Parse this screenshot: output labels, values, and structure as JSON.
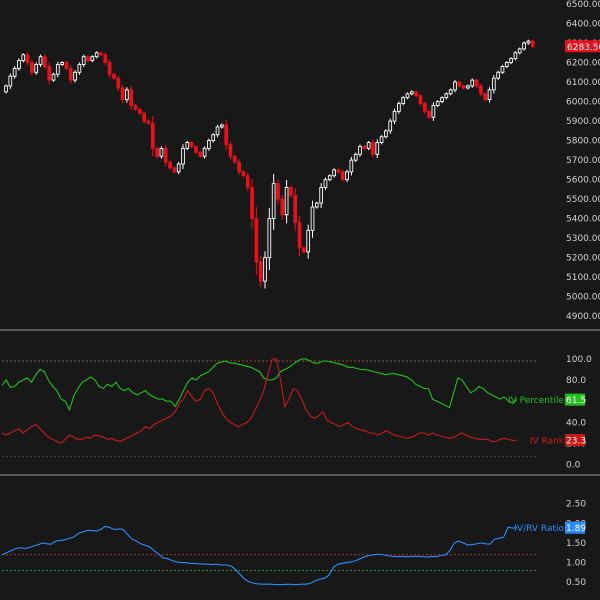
{
  "chart_data": [
    {
      "type": "candlestick",
      "title": "",
      "ylim": [
        4850,
        6500
      ],
      "y_ticks": [
        "6500.00",
        "6400.00",
        "6300.00",
        "6200.00",
        "6100.00",
        "6000.00",
        "5900.00",
        "5800.00",
        "5700.00",
        "5600.00",
        "5500.00",
        "5400.00",
        "5300.00",
        "5200.00",
        "5100.00",
        "5000.00",
        "4900.00"
      ],
      "last_price": "6283.50",
      "up_color": "#ffffff",
      "down_color": "#e8101a",
      "closes": [
        6080,
        6130,
        6170,
        6210,
        6240,
        6200,
        6150,
        6190,
        6230,
        6180,
        6110,
        6140,
        6190,
        6200,
        6170,
        6110,
        6150,
        6190,
        6230,
        6210,
        6230,
        6250,
        6240,
        6200,
        6140,
        6120,
        6070,
        6010,
        6060,
        5980,
        5960,
        5940,
        5900,
        5890,
        5760,
        5720,
        5760,
        5690,
        5660,
        5640,
        5680,
        5760,
        5790,
        5770,
        5740,
        5720,
        5760,
        5800,
        5830,
        5870,
        5880,
        5780,
        5720,
        5690,
        5640,
        5620,
        5560,
        5400,
        5180,
        5080,
        5200,
        5400,
        5580,
        5500,
        5420,
        5560,
        5520,
        5380,
        5250,
        5230,
        5340,
        5460,
        5480,
        5560,
        5600,
        5620,
        5650,
        5640,
        5600,
        5640,
        5700,
        5730,
        5770,
        5760,
        5790,
        5730,
        5790,
        5820,
        5850,
        5900,
        5950,
        5990,
        6020,
        6040,
        6050,
        6030,
        5990,
        5950,
        5920,
        5980,
        6000,
        6020,
        6040,
        6060,
        6100,
        6080,
        6070,
        6080,
        6110,
        6080,
        6040,
        6010,
        6060,
        6120,
        6150,
        6180,
        6200,
        6220,
        6250,
        6270,
        6300,
        6310,
        6283
      ]
    },
    {
      "type": "line",
      "title": "",
      "ylim": [
        -5,
        115
      ],
      "y_ticks": [
        "100.0",
        "80.0",
        "60.0",
        "40.0",
        "20.0",
        "0.0"
      ],
      "reference_lines": [
        {
          "value": 98,
          "color": "#c06020"
        },
        {
          "value": 8,
          "color": "#3060a0"
        }
      ],
      "series": [
        {
          "name": "IV Percentile",
          "color": "#22c01e",
          "last_value": "61.5",
          "values": [
            75,
            80,
            73,
            74,
            78,
            80,
            82,
            78,
            85,
            90,
            88,
            80,
            74,
            70,
            62,
            60,
            52,
            65,
            72,
            78,
            80,
            83,
            80,
            74,
            72,
            76,
            74,
            78,
            72,
            70,
            72,
            68,
            66,
            68,
            70,
            66,
            64,
            62,
            62,
            60,
            60,
            55,
            62,
            70,
            78,
            82,
            80,
            84,
            86,
            88,
            92,
            96,
            97,
            98,
            96,
            96,
            95,
            94,
            93,
            92,
            90,
            88,
            82,
            80,
            80,
            82,
            88,
            90,
            92,
            95,
            98,
            100,
            100,
            98,
            96,
            96,
            98,
            98,
            97,
            96,
            95,
            94,
            92,
            92,
            91,
            90,
            90,
            89,
            88,
            87,
            86,
            85,
            86,
            86,
            85,
            84,
            83,
            80,
            76,
            74,
            72,
            72,
            62,
            60,
            58,
            56,
            54,
            68,
            82,
            80,
            74,
            68,
            70,
            74,
            72,
            68,
            66,
            64,
            62,
            64,
            60,
            58,
            61.5
          ]
        },
        {
          "name": "IV Rank",
          "color": "#c81a1a",
          "last_value": "23.3",
          "values": [
            30,
            28,
            30,
            32,
            34,
            30,
            33,
            36,
            38,
            34,
            30,
            26,
            24,
            22,
            20,
            24,
            28,
            26,
            24,
            24,
            26,
            25,
            28,
            27,
            26,
            24,
            25,
            23,
            22,
            24,
            26,
            28,
            30,
            32,
            36,
            34,
            38,
            40,
            42,
            44,
            46,
            50,
            58,
            62,
            70,
            64,
            60,
            62,
            70,
            72,
            68,
            58,
            50,
            44,
            40,
            38,
            36,
            38,
            40,
            44,
            52,
            60,
            70,
            85,
            100,
            100,
            80,
            55,
            62,
            72,
            70,
            62,
            52,
            46,
            44,
            46,
            50,
            42,
            40,
            38,
            36,
            38,
            40,
            36,
            34,
            33,
            32,
            30,
            30,
            28,
            30,
            32,
            30,
            28,
            27,
            26,
            25,
            26,
            28,
            30,
            30,
            28,
            30,
            28,
            27,
            26,
            25,
            26,
            28,
            30,
            28,
            26,
            25,
            24,
            24,
            24,
            22,
            22,
            24,
            25,
            24,
            23,
            23.3
          ]
        }
      ]
    },
    {
      "type": "line",
      "title": "",
      "ylim": [
        0.2,
        2.85
      ],
      "y_ticks": [
        "2.50",
        "2.00",
        "1.50",
        "1.00",
        "0.50"
      ],
      "reference_lines": [
        {
          "value": 1.2,
          "color": "#c04040"
        },
        {
          "value": 0.8,
          "color": "#30a040"
        }
      ],
      "series": [
        {
          "name": "IV/RV Ratio",
          "color": "#2a8cff",
          "last_value": "1.89",
          "values": [
            1.2,
            1.25,
            1.3,
            1.35,
            1.38,
            1.36,
            1.38,
            1.42,
            1.45,
            1.5,
            1.48,
            1.47,
            1.55,
            1.56,
            1.58,
            1.62,
            1.65,
            1.74,
            1.78,
            1.82,
            1.82,
            1.8,
            1.84,
            1.92,
            1.9,
            1.84,
            1.86,
            1.85,
            1.72,
            1.6,
            1.55,
            1.48,
            1.44,
            1.4,
            1.3,
            1.22,
            1.12,
            1.1,
            1.05,
            1.02,
            1.0,
            1.0,
            0.98,
            0.98,
            0.97,
            0.96,
            0.96,
            0.95,
            0.96,
            0.94,
            0.94,
            0.92,
            0.84,
            0.72,
            0.6,
            0.52,
            0.48,
            0.46,
            0.45,
            0.45,
            0.45,
            0.44,
            0.44,
            0.44,
            0.45,
            0.44,
            0.44,
            0.45,
            0.45,
            0.48,
            0.54,
            0.58,
            0.6,
            0.68,
            0.88,
            0.96,
            0.98,
            1.0,
            1.02,
            1.05,
            1.1,
            1.15,
            1.18,
            1.2,
            1.22,
            1.2,
            1.18,
            1.16,
            1.15,
            1.16,
            1.15,
            1.15,
            1.16,
            1.16,
            1.15,
            1.14,
            1.16,
            1.15,
            1.18,
            1.2,
            1.3,
            1.5,
            1.55,
            1.5,
            1.45,
            1.46,
            1.48,
            1.5,
            1.48,
            1.47,
            1.6,
            1.62,
            1.65,
            1.9,
            1.88,
            1.89
          ]
        }
      ]
    }
  ]
}
